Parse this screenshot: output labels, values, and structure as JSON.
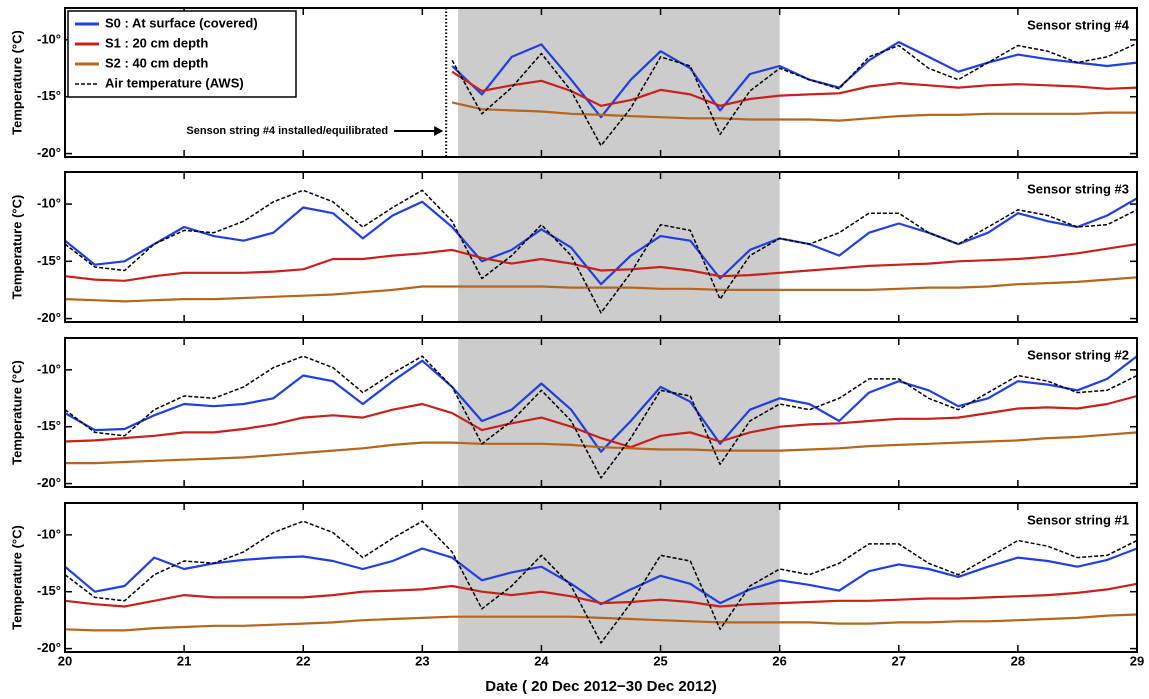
{
  "chart_data": [
    {
      "type": "line",
      "title": "Sensor string #4",
      "ylabel": "Temperature (°C)",
      "x": [
        20,
        20.25,
        20.5,
        20.75,
        21,
        21.25,
        21.5,
        21.75,
        22,
        22.25,
        22.5,
        22.75,
        23,
        23.25,
        23.5,
        23.75,
        24,
        24.25,
        24.5,
        24.75,
        25,
        25.25,
        25.5,
        25.75,
        26,
        26.25,
        26.5,
        26.75,
        27,
        27.25,
        27.5,
        27.75,
        28,
        28.25,
        28.5,
        28.75,
        29
      ],
      "xlim": [
        20,
        29
      ],
      "xticks": [
        20,
        21,
        22,
        23,
        24,
        25,
        26,
        27,
        28,
        29
      ],
      "ylim": [
        -20.3,
        -7.2
      ],
      "yticks": [
        {
          "value": -10,
          "label": "-10°"
        },
        {
          "value": -15,
          "label": "-15°"
        },
        {
          "value": -20,
          "label": "-20°"
        }
      ],
      "shaded": [
        23.3,
        26.0
      ],
      "legend": "upper left",
      "annotation": {
        "text": "Senson string #4 installed/equilibrated",
        "x": 23.2
      },
      "series": [
        {
          "name": "S0 : At surface (covered)",
          "color": "#1f3fe0",
          "dashed": false,
          "values": [
            null,
            null,
            null,
            null,
            null,
            null,
            null,
            null,
            null,
            null,
            null,
            null,
            null,
            -12.3,
            -14.8,
            -11.5,
            -10.4,
            -13.5,
            -16.8,
            -13.5,
            -11,
            -12.5,
            -16.2,
            -13,
            -12.3,
            -13.5,
            -14.2,
            -11.8,
            -10.2,
            -11.5,
            -12.8,
            -12,
            -11.3,
            -11.7,
            -12,
            -12.3,
            -12
          ]
        },
        {
          "name": "S1 : 20 cm depth",
          "color": "#c8201b",
          "dashed": false,
          "values": [
            null,
            null,
            null,
            null,
            null,
            null,
            null,
            null,
            null,
            null,
            null,
            null,
            null,
            -12.8,
            -14.5,
            -14,
            -13.6,
            -14.5,
            -15.8,
            -15.3,
            -14.4,
            -14.8,
            -15.8,
            -15.2,
            -14.9,
            -14.8,
            -14.7,
            -14.1,
            -13.8,
            -14,
            -14.2,
            -14,
            -13.9,
            -14,
            -14.1,
            -14.3,
            -14.2
          ]
        },
        {
          "name": "S2 : 40 cm depth",
          "color": "#b5651d",
          "dashed": false,
          "values": [
            null,
            null,
            null,
            null,
            null,
            null,
            null,
            null,
            null,
            null,
            null,
            null,
            null,
            -15.5,
            -16.1,
            -16.2,
            -16.3,
            -16.5,
            -16.6,
            -16.7,
            -16.8,
            -16.9,
            -16.9,
            -17,
            -17,
            -17,
            -17.1,
            -16.9,
            -16.7,
            -16.6,
            -16.6,
            -16.5,
            -16.5,
            -16.5,
            -16.5,
            -16.4,
            -16.4
          ]
        },
        {
          "name": "Air temperature (AWS)",
          "color": "#000000",
          "dashed": true,
          "values": [
            null,
            null,
            null,
            null,
            null,
            null,
            null,
            null,
            null,
            null,
            null,
            null,
            null,
            -11.8,
            -16.5,
            -14.2,
            -11.2,
            -14.5,
            -19.3,
            -16,
            -11.5,
            -12.3,
            -18.3,
            -14.5,
            -12.5,
            -13.5,
            -14.3,
            -11.5,
            -10.5,
            -12.5,
            -13.5,
            -12,
            -10.5,
            -11,
            -12,
            -11.5,
            -10.3
          ]
        }
      ]
    },
    {
      "type": "line",
      "title": "Sensor string #3",
      "ylabel": "Temperature (°C)",
      "x": [
        20,
        20.25,
        20.5,
        20.75,
        21,
        21.25,
        21.5,
        21.75,
        22,
        22.25,
        22.5,
        22.75,
        23,
        23.25,
        23.5,
        23.75,
        24,
        24.25,
        24.5,
        24.75,
        25,
        25.25,
        25.5,
        25.75,
        26,
        26.25,
        26.5,
        26.75,
        27,
        27.25,
        27.5,
        27.75,
        28,
        28.25,
        28.5,
        28.75,
        29
      ],
      "xlim": [
        20,
        29
      ],
      "xticks": [
        20,
        21,
        22,
        23,
        24,
        25,
        26,
        27,
        28,
        29
      ],
      "ylim": [
        -20.3,
        -7.2
      ],
      "yticks": [
        {
          "value": -10,
          "label": "-10°"
        },
        {
          "value": -15,
          "label": "-15°"
        },
        {
          "value": -20,
          "label": "-20°"
        }
      ],
      "shaded": [
        23.3,
        26.0
      ],
      "series": [
        {
          "color": "#1f3fe0",
          "dashed": false,
          "values": [
            -13.2,
            -15.3,
            -15,
            -13.5,
            -12,
            -12.8,
            -13.2,
            -12.5,
            -10.3,
            -10.8,
            -13,
            -11,
            -9.8,
            -12,
            -15,
            -14,
            -12.2,
            -13.8,
            -17,
            -14.5,
            -12.8,
            -13.2,
            -16.5,
            -14,
            -13,
            -13.5,
            -14.5,
            -12.5,
            -11.7,
            -12.5,
            -13.5,
            -12.5,
            -10.8,
            -11.5,
            -12,
            -11,
            -9.5
          ]
        },
        {
          "color": "#c8201b",
          "dashed": false,
          "values": [
            -16.3,
            -16.6,
            -16.7,
            -16.3,
            -16,
            -16,
            -16,
            -15.9,
            -15.7,
            -14.8,
            -14.8,
            -14.5,
            -14.3,
            -14,
            -14.7,
            -15.2,
            -14.8,
            -15.2,
            -15.8,
            -15.7,
            -15.5,
            -15.8,
            -16.3,
            -16.2,
            -16,
            -15.8,
            -15.6,
            -15.4,
            -15.3,
            -15.2,
            -15,
            -14.9,
            -14.8,
            -14.6,
            -14.3,
            -13.9,
            -13.5
          ]
        },
        {
          "color": "#b5651d",
          "dashed": false,
          "values": [
            -18.3,
            -18.4,
            -18.5,
            -18.4,
            -18.3,
            -18.3,
            -18.2,
            -18.1,
            -18,
            -17.9,
            -17.7,
            -17.5,
            -17.2,
            -17.2,
            -17.2,
            -17.2,
            -17.2,
            -17.3,
            -17.3,
            -17.3,
            -17.4,
            -17.4,
            -17.5,
            -17.5,
            -17.5,
            -17.5,
            -17.5,
            -17.5,
            -17.4,
            -17.3,
            -17.3,
            -17.2,
            -17,
            -16.9,
            -16.8,
            -16.6,
            -16.4
          ]
        },
        {
          "color": "#000000",
          "dashed": true,
          "values": [
            -13.5,
            -15.5,
            -15.8,
            -13.5,
            -12.3,
            -12.5,
            -11.5,
            -9.8,
            -8.8,
            -9.8,
            -12,
            -10.3,
            -8.8,
            -11.5,
            -16.5,
            -14.5,
            -11.8,
            -14.5,
            -19.5,
            -16,
            -11.8,
            -12.3,
            -18.3,
            -14.5,
            -13,
            -13.5,
            -12.5,
            -10.8,
            -10.8,
            -12.5,
            -13.5,
            -12,
            -10.5,
            -11,
            -12,
            -11.8,
            -10.5
          ]
        }
      ]
    },
    {
      "type": "line",
      "title": "Sensor string #2",
      "ylabel": "Temperature (°C)",
      "x": [
        20,
        20.25,
        20.5,
        20.75,
        21,
        21.25,
        21.5,
        21.75,
        22,
        22.25,
        22.5,
        22.75,
        23,
        23.25,
        23.5,
        23.75,
        24,
        24.25,
        24.5,
        24.75,
        25,
        25.25,
        25.5,
        25.75,
        26,
        26.25,
        26.5,
        26.75,
        27,
        27.25,
        27.5,
        27.75,
        28,
        28.25,
        28.5,
        28.75,
        29
      ],
      "xlim": [
        20,
        29
      ],
      "xticks": [
        20,
        21,
        22,
        23,
        24,
        25,
        26,
        27,
        28,
        29
      ],
      "ylim": [
        -20.3,
        -7.2
      ],
      "yticks": [
        {
          "value": -10,
          "label": "-10°"
        },
        {
          "value": -15,
          "label": "-15°"
        },
        {
          "value": -20,
          "label": "-20°"
        }
      ],
      "shaded": [
        23.3,
        26.0
      ],
      "series": [
        {
          "color": "#1f3fe0",
          "dashed": false,
          "values": [
            -13.8,
            -15.3,
            -15.2,
            -14,
            -13,
            -13.2,
            -13,
            -12.5,
            -10.5,
            -11,
            -13,
            -11,
            -9.2,
            -11.5,
            -14.5,
            -13.5,
            -11.2,
            -13.5,
            -17.2,
            -14.5,
            -11.5,
            -12.8,
            -16.5,
            -13.5,
            -12.5,
            -13,
            -14.5,
            -12,
            -11,
            -11.8,
            -13.2,
            -12.5,
            -11,
            -11.3,
            -11.8,
            -10.8,
            -8.8
          ]
        },
        {
          "color": "#c8201b",
          "dashed": false,
          "values": [
            -16.3,
            -16.2,
            -16,
            -15.8,
            -15.5,
            -15.5,
            -15.2,
            -14.8,
            -14.2,
            -14,
            -14.2,
            -13.5,
            -13,
            -13.8,
            -15.3,
            -14.7,
            -14.2,
            -15,
            -16,
            -16.8,
            -15.8,
            -15.5,
            -16.3,
            -15.5,
            -15,
            -14.8,
            -14.7,
            -14.5,
            -14.3,
            -14.3,
            -14.2,
            -13.8,
            -13.4,
            -13.3,
            -13.4,
            -13,
            -12.3
          ]
        },
        {
          "color": "#b5651d",
          "dashed": false,
          "values": [
            -18.2,
            -18.2,
            -18.1,
            -18,
            -17.9,
            -17.8,
            -17.7,
            -17.5,
            -17.3,
            -17.1,
            -16.9,
            -16.6,
            -16.4,
            -16.4,
            -16.5,
            -16.5,
            -16.5,
            -16.6,
            -16.8,
            -16.9,
            -17,
            -17,
            -17.1,
            -17.1,
            -17.1,
            -17,
            -16.9,
            -16.7,
            -16.6,
            -16.5,
            -16.4,
            -16.3,
            -16.2,
            -16,
            -15.9,
            -15.7,
            -15.5
          ]
        },
        {
          "color": "#000000",
          "dashed": true,
          "values": [
            -13.5,
            -15.5,
            -15.8,
            -13.5,
            -12.3,
            -12.5,
            -11.5,
            -9.8,
            -8.8,
            -9.8,
            -12,
            -10.3,
            -8.8,
            -11.5,
            -16.5,
            -14.5,
            -11.8,
            -14.5,
            -19.5,
            -16,
            -11.8,
            -12.3,
            -18.3,
            -14.5,
            -13,
            -13.5,
            -12.5,
            -10.8,
            -10.8,
            -12.5,
            -13.5,
            -12,
            -10.5,
            -11,
            -12,
            -11.8,
            -10.5
          ]
        }
      ]
    },
    {
      "type": "line",
      "title": "Sensor string #1",
      "ylabel": "Temperature (°C)",
      "xlabel": "Date ( 20 Dec 2012−30 Dec 2012)",
      "x": [
        20,
        20.25,
        20.5,
        20.75,
        21,
        21.25,
        21.5,
        21.75,
        22,
        22.25,
        22.5,
        22.75,
        23,
        23.25,
        23.5,
        23.75,
        24,
        24.25,
        24.5,
        24.75,
        25,
        25.25,
        25.5,
        25.75,
        26,
        26.25,
        26.5,
        26.75,
        27,
        27.25,
        27.5,
        27.75,
        28,
        28.25,
        28.5,
        28.75,
        29
      ],
      "xlim": [
        20,
        29
      ],
      "xticks": [
        20,
        21,
        22,
        23,
        24,
        25,
        26,
        27,
        28,
        29
      ],
      "ylim": [
        -20.3,
        -7.2
      ],
      "yticks": [
        {
          "value": -10,
          "label": "-10°"
        },
        {
          "value": -15,
          "label": "-15°"
        },
        {
          "value": -20,
          "label": "-20°"
        }
      ],
      "shaded": [
        23.3,
        26.0
      ],
      "series": [
        {
          "color": "#1f3fe0",
          "dashed": false,
          "values": [
            -12.8,
            -15,
            -14.5,
            -12,
            -13,
            -12.5,
            -12.2,
            -12,
            -11.9,
            -12.3,
            -13,
            -12.3,
            -11.2,
            -12,
            -14,
            -13.3,
            -12.8,
            -14.3,
            -16.1,
            -14.8,
            -13.6,
            -14.3,
            -16,
            -14.8,
            -14,
            -14.4,
            -14.9,
            -13.2,
            -12.6,
            -13,
            -13.7,
            -12.8,
            -12,
            -12.3,
            -12.8,
            -12.2,
            -11.2
          ]
        },
        {
          "color": "#c8201b",
          "dashed": false,
          "values": [
            -15.8,
            -16.1,
            -16.3,
            -15.8,
            -15.3,
            -15.5,
            -15.5,
            -15.5,
            -15.5,
            -15.3,
            -15,
            -14.9,
            -14.8,
            -14.5,
            -15,
            -15.3,
            -15,
            -15.4,
            -16,
            -15.9,
            -15.7,
            -15.9,
            -16.3,
            -16.1,
            -16,
            -15.9,
            -15.8,
            -15.8,
            -15.7,
            -15.6,
            -15.6,
            -15.5,
            -15.4,
            -15.3,
            -15.1,
            -14.8,
            -14.3
          ]
        },
        {
          "color": "#b5651d",
          "dashed": false,
          "values": [
            -18.3,
            -18.4,
            -18.4,
            -18.2,
            -18.1,
            -18,
            -18,
            -17.9,
            -17.8,
            -17.7,
            -17.5,
            -17.4,
            -17.3,
            -17.2,
            -17.2,
            -17.2,
            -17.2,
            -17.2,
            -17.3,
            -17.4,
            -17.5,
            -17.6,
            -17.7,
            -17.7,
            -17.7,
            -17.7,
            -17.8,
            -17.8,
            -17.7,
            -17.7,
            -17.6,
            -17.6,
            -17.5,
            -17.4,
            -17.3,
            -17.1,
            -17
          ]
        },
        {
          "color": "#000000",
          "dashed": true,
          "values": [
            -13.5,
            -15.5,
            -15.8,
            -13.5,
            -12.3,
            -12.5,
            -11.5,
            -9.8,
            -8.8,
            -9.8,
            -12,
            -10.3,
            -8.8,
            -11.5,
            -16.5,
            -14.5,
            -11.8,
            -14.5,
            -19.5,
            -16,
            -11.8,
            -12.3,
            -18.3,
            -14.5,
            -13,
            -13.5,
            -12.5,
            -10.8,
            -10.8,
            -12.5,
            -13.5,
            -12,
            -10.5,
            -11,
            -12,
            -11.8,
            -10.5
          ]
        }
      ]
    }
  ]
}
